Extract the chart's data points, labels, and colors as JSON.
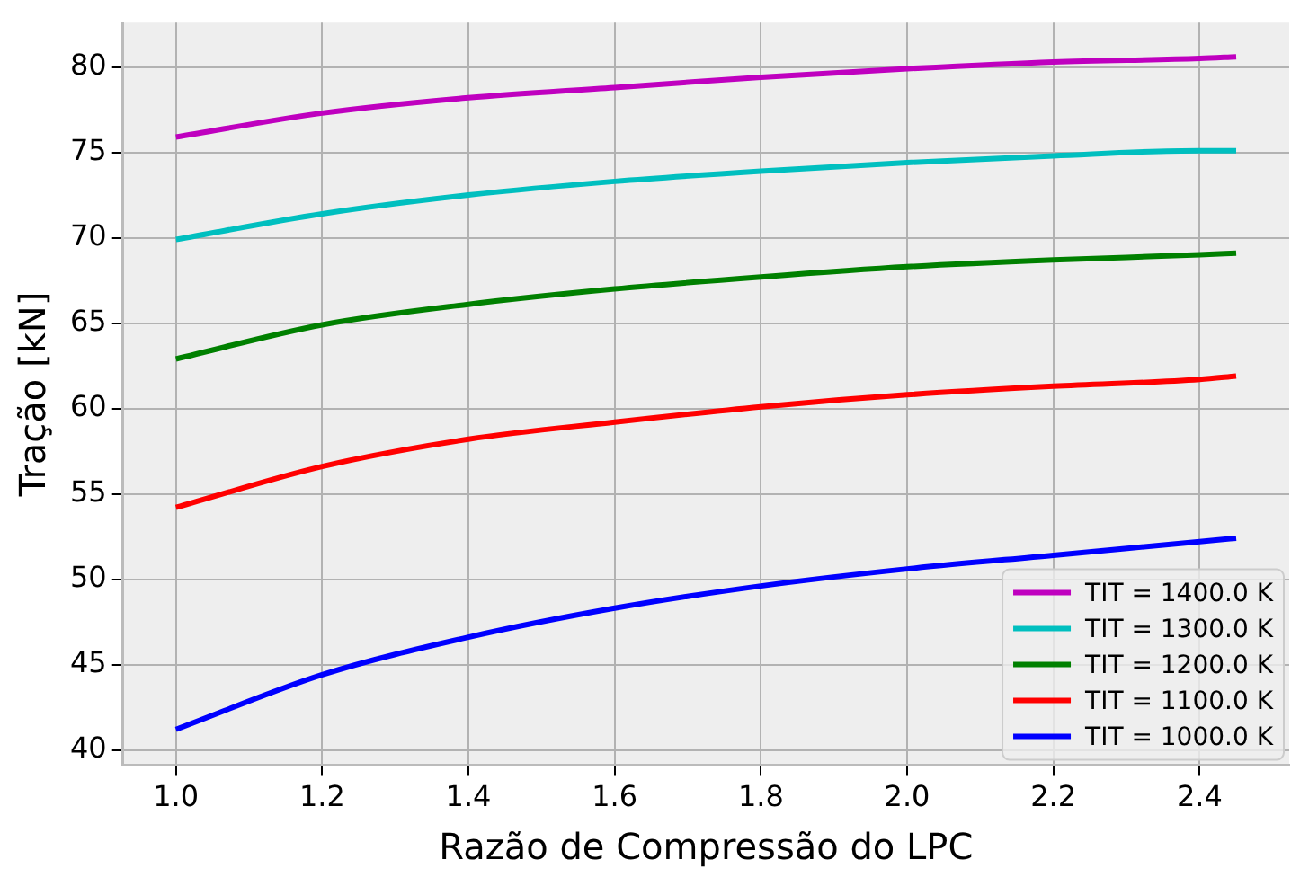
{
  "chart_data": {
    "type": "line",
    "xlabel": "Razão de Compressão do LPC",
    "ylabel": "Tração [kN]",
    "x": [
      1.0,
      1.2,
      1.4,
      1.6,
      1.8,
      2.0,
      2.2,
      2.4,
      2.45
    ],
    "series": [
      {
        "name": "TIT = 1400.0 K",
        "color": "#bf00bf",
        "values": [
          75.9,
          77.3,
          78.2,
          78.8,
          79.4,
          79.9,
          80.3,
          80.5,
          80.6
        ]
      },
      {
        "name": "TIT = 1300.0 K",
        "color": "#00bfbf",
        "values": [
          69.9,
          71.4,
          72.5,
          73.3,
          73.9,
          74.4,
          74.8,
          75.1,
          75.1
        ]
      },
      {
        "name": "TIT = 1200.0 K",
        "color": "#008000",
        "values": [
          62.9,
          64.9,
          66.1,
          67.0,
          67.7,
          68.3,
          68.7,
          69.0,
          69.1
        ]
      },
      {
        "name": "TIT = 1100.0 K",
        "color": "#ff0000",
        "values": [
          54.2,
          56.6,
          58.2,
          59.2,
          60.1,
          60.8,
          61.3,
          61.7,
          61.9
        ]
      },
      {
        "name": "TIT = 1000.0 K",
        "color": "#0000ff",
        "values": [
          41.2,
          44.4,
          46.6,
          48.3,
          49.6,
          50.6,
          51.4,
          52.2,
          52.4
        ]
      }
    ],
    "xlim": [
      0.9275,
      2.5225
    ],
    "xticks": [
      {
        "value": 1,
        "label": "1.0"
      },
      {
        "value": 1.2,
        "label": "1.2"
      },
      {
        "value": 1.4,
        "label": "1.4"
      },
      {
        "value": 1.6,
        "label": "1.6"
      },
      {
        "value": 1.8,
        "label": "1.8"
      },
      {
        "value": 2,
        "label": "2.0"
      },
      {
        "value": 2.2,
        "label": "2.2"
      },
      {
        "value": 2.4,
        "label": "2.4"
      }
    ],
    "ylim": [
      39.1,
      82.6
    ],
    "yticks": [
      40,
      45,
      50,
      55,
      60,
      65,
      70,
      75,
      80
    ],
    "grid": true,
    "legend": "bottom right",
    "marker": "none",
    "line_style": "solid"
  }
}
